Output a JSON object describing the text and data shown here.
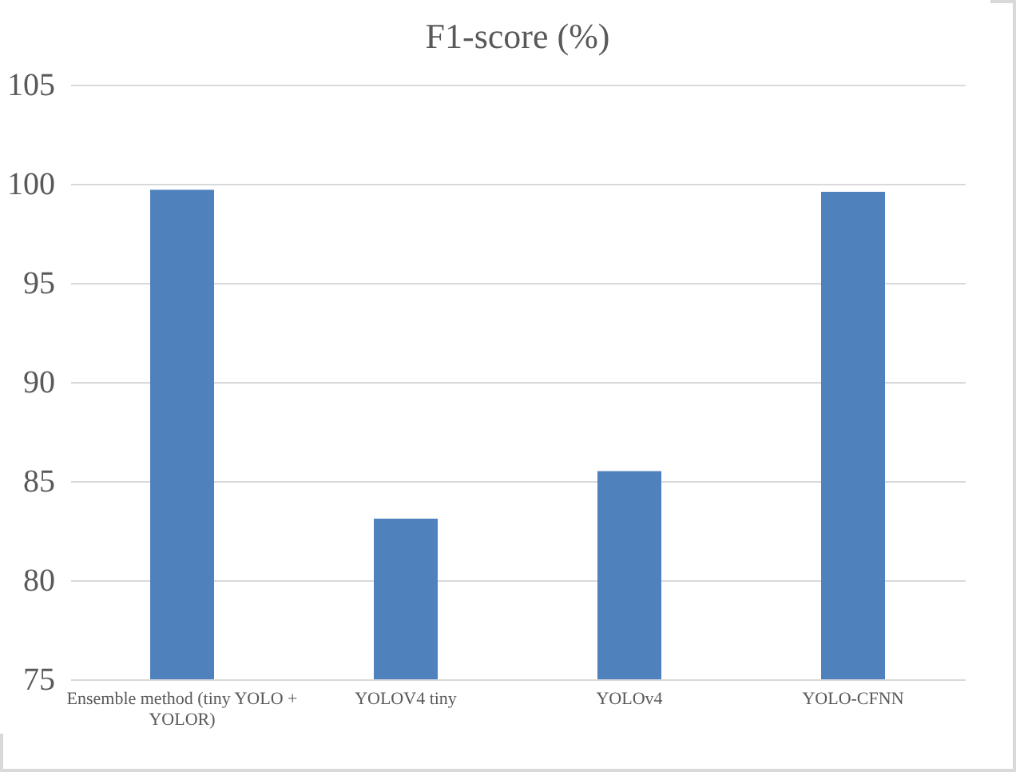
{
  "chart_data": {
    "type": "bar",
    "title": "F1-score (%)",
    "categories": [
      "Ensemble method (tiny YOLO + YOLOR)",
      "YOLOV4 tiny",
      "YOLOv4",
      "YOLO-CFNN"
    ],
    "values": [
      99.7,
      83.1,
      85.5,
      99.6
    ],
    "color": "#4f81bd",
    "ylim": [
      75,
      105
    ],
    "yticks": [
      75,
      80,
      85,
      90,
      95,
      100,
      105
    ],
    "grid": "y"
  }
}
